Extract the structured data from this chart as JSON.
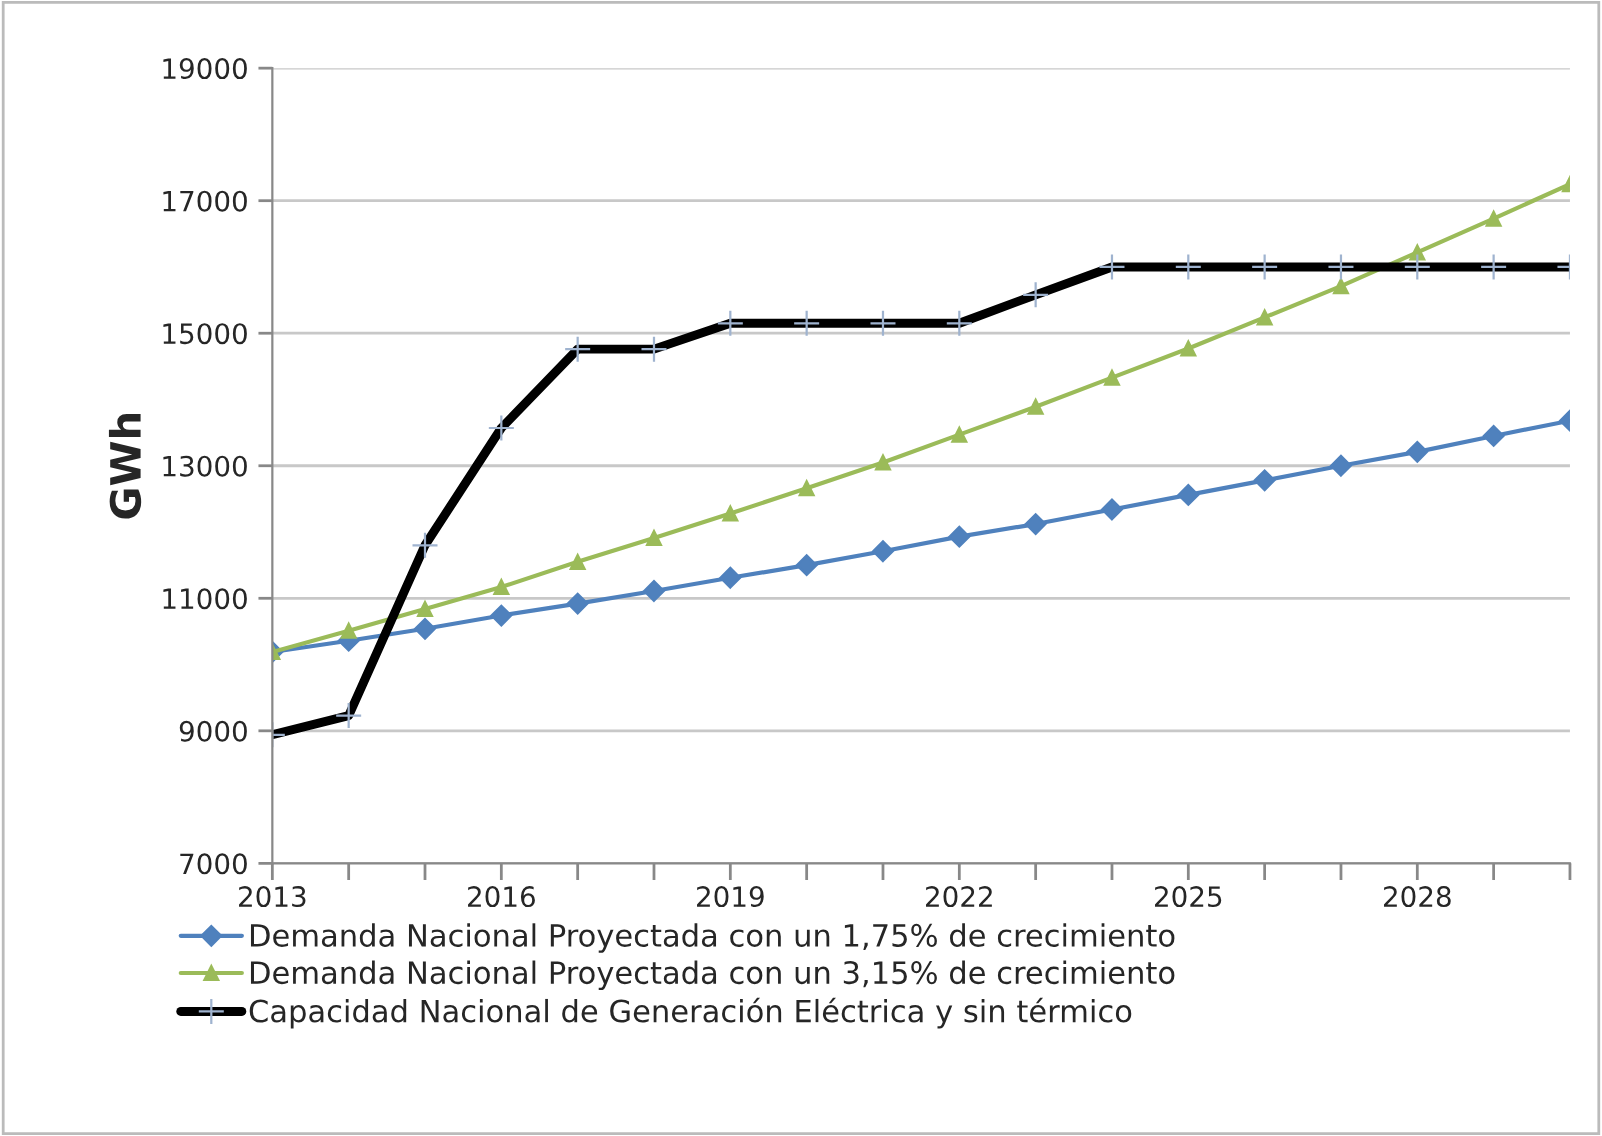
{
  "chart_data": {
    "type": "line",
    "ylabel": "GWh",
    "x": [
      2013,
      2014,
      2015,
      2016,
      2017,
      2018,
      2019,
      2020,
      2021,
      2022,
      2023,
      2024,
      2025,
      2026,
      2027,
      2028,
      2029,
      2030
    ],
    "series": [
      {
        "name": "Demanda Nacional Proyectada con un 1,75% de crecimiento",
        "color": "#4f81bd",
        "marker": "diamond",
        "values": [
          10190,
          10360,
          10540,
          10740,
          10920,
          11110,
          11310,
          11500,
          11710,
          11930,
          12120,
          12340,
          12560,
          12780,
          13000,
          13210,
          13450,
          13680
        ]
      },
      {
        "name": "Demanda Nacional Proyectada con un 3,15% de crecimiento",
        "color": "#9bbb59",
        "marker": "triangle",
        "values": [
          10190,
          10510,
          10840,
          11170,
          11550,
          11910,
          12280,
          12660,
          13050,
          13470,
          13890,
          14330,
          14770,
          15240,
          15710,
          16220,
          16730,
          17250
        ]
      },
      {
        "name": "Capacidad Nacional de Generación Eléctrica y sin térmico",
        "color": "#000000",
        "marker": "cross",
        "values": [
          8940,
          9230,
          11800,
          13570,
          14760,
          14760,
          15150,
          15150,
          15150,
          15150,
          15580,
          16000,
          16000,
          16000,
          16000,
          16000,
          16000,
          16000
        ]
      }
    ],
    "xlim": [
      2013,
      2030
    ],
    "xticks": [
      2013,
      {
        "value": 2014,
        "label": null
      },
      {
        "value": 2015,
        "label": null
      },
      2016,
      {
        "value": 2017,
        "label": null
      },
      {
        "value": 2018,
        "label": null
      },
      2019,
      {
        "value": 2020,
        "label": null
      },
      {
        "value": 2021,
        "label": null
      },
      2022,
      {
        "value": 2023,
        "label": null
      },
      {
        "value": 2024,
        "label": null
      },
      2025,
      {
        "value": 2026,
        "label": null
      },
      {
        "value": 2027,
        "label": null
      },
      2028,
      {
        "value": 2029,
        "label": null
      },
      {
        "value": 2030,
        "label": null
      }
    ],
    "ylim": [
      7000,
      19000
    ],
    "yticks": [
      7000,
      9000,
      11000,
      13000,
      15000,
      17000,
      19000
    ],
    "grid": "y",
    "legend": "bottom",
    "line_style": "solid"
  }
}
